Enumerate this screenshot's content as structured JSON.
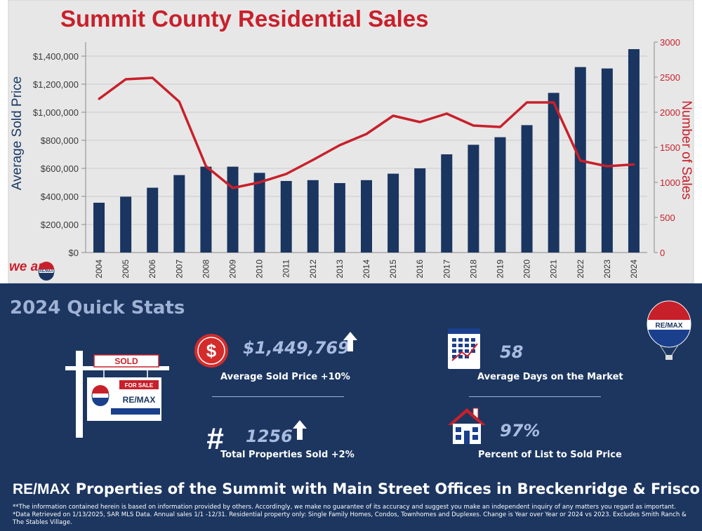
{
  "chart_data": {
    "type": "bar+line",
    "title": "Summit County Residential Sales",
    "categories": [
      "2004",
      "2005",
      "2006",
      "2007",
      "2008",
      "2009",
      "2010",
      "2011",
      "2012",
      "2013",
      "2014",
      "2015",
      "2016",
      "2017",
      "2018",
      "2019",
      "2020",
      "2021",
      "2022",
      "2023",
      "2024"
    ],
    "series": [
      {
        "name": "Average Sold Price",
        "type": "bar",
        "axis": "left",
        "color": "#1a3560",
        "values": [
          355000,
          398000,
          462000,
          552000,
          612000,
          612000,
          568000,
          510000,
          516000,
          495000,
          516000,
          562000,
          600000,
          700000,
          768000,
          822000,
          908000,
          1138000,
          1322000,
          1312000,
          1449769
        ]
      },
      {
        "name": "Number of Sales",
        "type": "line",
        "axis": "right",
        "color": "#c8202b",
        "values": [
          2190,
          2470,
          2490,
          2150,
          1230,
          920,
          1000,
          1120,
          1320,
          1530,
          1690,
          1950,
          1860,
          1980,
          1810,
          1790,
          2140,
          2140,
          1310,
          1230,
          1256
        ]
      }
    ],
    "ylabel": "Average Sold Price",
    "y2label": "Number of Sales",
    "ylim": [
      0,
      1500000
    ],
    "y2lim": [
      0,
      3000
    ],
    "yticks": [
      "$0",
      "$200,000",
      "$400,000",
      "$600,000",
      "$800,000",
      "$1,000,000",
      "$1,200,000",
      "$1,400,000"
    ],
    "y2ticks": [
      "0",
      "500",
      "1000",
      "1500",
      "2000",
      "2500",
      "3000"
    ],
    "grid": true
  },
  "brand": {
    "we_are": "we are",
    "remax_small": "RE/MAX",
    "balloon_text": "RE/MAX"
  },
  "stats": {
    "heading": "2024 Quick Stats",
    "sign": {
      "sold": "SOLD",
      "for_sale": "FOR SALE",
      "remax": "RE/MAX"
    },
    "avg_price": {
      "icon": "dollar-icon",
      "value": "$1,449,769",
      "label": "Average Sold Price +10%"
    },
    "days": {
      "icon": "calendar-chart-icon",
      "value": "58",
      "label": "Average Days on the Market"
    },
    "total": {
      "icon": "hash-icon",
      "value": "1256",
      "label": "Total Properties Sold +2%"
    },
    "percent": {
      "icon": "house-icon",
      "value": "97%",
      "label": "Percent of List to Sold Price"
    }
  },
  "footer": {
    "brand_logo": "RE/MAX",
    "brand_text": "Properties of the Summit with Main Street Offices in Breckenridge & Frisco",
    "note": "**The information contained herein is based on information provided by others. Accordingly, we make no guarantee of its accuracy and suggest you make an independent inquiry of any matters you regard as important. *Data Retrieved on 1/13/2025, SAR MLS Data. Annual sales 1/1 -12/31. Residential property only: Single Family Homes, Condos, Townhomes and Duplexes. Change is Year over Year or 2024 vs 2023. Excludes Smith Ranch & The Stables Village."
  },
  "colors": {
    "navy": "#1c3660",
    "red": "#c8202b",
    "chart_bg": "#e7e7e7",
    "light_blue": "#a9bcdf"
  }
}
